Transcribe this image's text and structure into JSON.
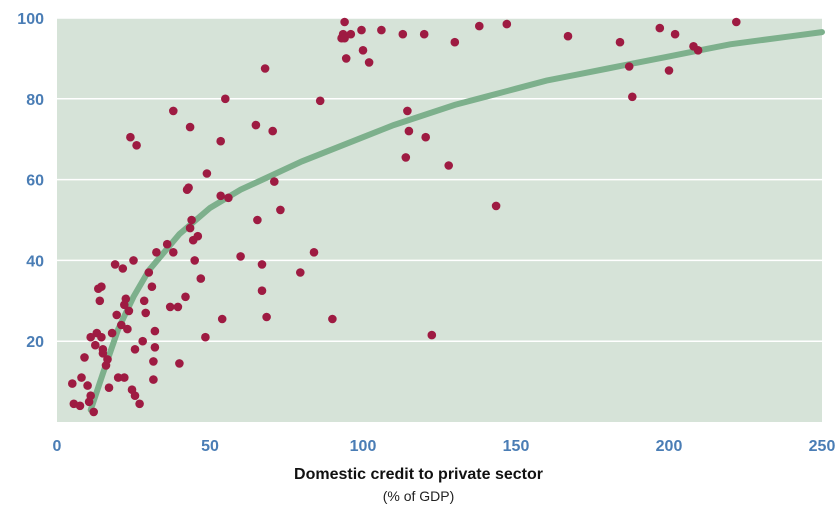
{
  "chart_data": {
    "type": "scatter",
    "xlabel": "Domestic credit to private sector",
    "xlabel_sub": "(% of GDP)",
    "ylabel": "",
    "xlim": [
      0,
      250
    ],
    "ylim": [
      0,
      100
    ],
    "x_ticks": [
      0,
      50,
      100,
      150,
      200,
      250
    ],
    "y_ticks": [
      20,
      40,
      60,
      80,
      100
    ],
    "grid": "horizontal",
    "colors": {
      "background": "#d6e3d8",
      "points": "#9e1b42",
      "trend": "#7db08c",
      "grid": "#ffffff",
      "tick_labels": "#4a7db5"
    },
    "series": [
      {
        "values": [
          [
            5,
            9.5
          ],
          [
            5.5,
            4.5
          ],
          [
            7.5,
            4
          ],
          [
            8,
            11
          ],
          [
            9,
            16
          ],
          [
            10,
            9
          ],
          [
            10.5,
            5
          ],
          [
            11,
            6.5
          ],
          [
            11,
            21
          ],
          [
            12,
            2.5
          ],
          [
            12.5,
            19
          ],
          [
            13,
            22
          ],
          [
            13.5,
            33
          ],
          [
            14,
            30
          ],
          [
            14.5,
            33.5
          ],
          [
            14.5,
            21
          ],
          [
            15,
            17
          ],
          [
            15,
            18
          ],
          [
            16,
            14
          ],
          [
            16.5,
            15.5
          ],
          [
            17,
            8.5
          ],
          [
            18,
            22
          ],
          [
            19,
            39
          ],
          [
            19.5,
            26.5
          ],
          [
            20,
            11
          ],
          [
            21,
            24
          ],
          [
            21.5,
            38
          ],
          [
            22,
            11
          ],
          [
            22,
            29
          ],
          [
            22.5,
            30.5
          ],
          [
            23,
            23
          ],
          [
            23.5,
            27.5
          ],
          [
            24,
            70.5
          ],
          [
            24.5,
            8
          ],
          [
            25,
            40
          ],
          [
            25.5,
            6.5
          ],
          [
            25.5,
            18
          ],
          [
            26,
            68.5
          ],
          [
            27,
            4.5
          ],
          [
            28,
            20
          ],
          [
            28.5,
            30
          ],
          [
            29,
            27
          ],
          [
            30,
            37
          ],
          [
            31,
            33.5
          ],
          [
            31.5,
            10.5
          ],
          [
            31.5,
            15
          ],
          [
            32,
            18.5
          ],
          [
            32,
            22.5
          ],
          [
            32.5,
            42
          ],
          [
            36,
            44
          ],
          [
            37,
            28.5
          ],
          [
            38,
            77
          ],
          [
            38,
            42
          ],
          [
            39.5,
            28.5
          ],
          [
            40,
            14.5
          ],
          [
            42,
            31
          ],
          [
            42.5,
            57.5
          ],
          [
            43,
            58
          ],
          [
            43.5,
            73
          ],
          [
            43.5,
            48
          ],
          [
            44,
            50
          ],
          [
            44.5,
            45
          ],
          [
            45,
            40
          ],
          [
            46,
            46
          ],
          [
            47,
            35.5
          ],
          [
            48.5,
            21
          ],
          [
            49,
            61.5
          ],
          [
            53.5,
            69.5
          ],
          [
            53.5,
            56
          ],
          [
            54,
            25.5
          ],
          [
            55,
            80
          ],
          [
            56,
            55.5
          ],
          [
            60,
            41
          ],
          [
            65,
            73.5
          ],
          [
            65.5,
            50
          ],
          [
            67,
            32.5
          ],
          [
            67,
            39
          ],
          [
            68,
            87.5
          ],
          [
            68.5,
            26
          ],
          [
            70.5,
            72
          ],
          [
            71,
            59.5
          ],
          [
            73,
            52.5
          ],
          [
            79.5,
            37
          ],
          [
            84,
            42
          ],
          [
            86,
            79.5
          ],
          [
            90,
            25.5
          ],
          [
            93,
            95
          ],
          [
            93.5,
            96
          ],
          [
            94,
            99
          ],
          [
            94,
            95
          ],
          [
            94.5,
            90
          ],
          [
            96,
            96
          ],
          [
            99.5,
            97
          ],
          [
            100,
            92
          ],
          [
            102,
            89
          ],
          [
            106,
            97
          ],
          [
            113,
            96
          ],
          [
            114,
            65.5
          ],
          [
            114.5,
            77
          ],
          [
            115,
            72
          ],
          [
            120,
            96
          ],
          [
            120.5,
            70.5
          ],
          [
            122.5,
            21.5
          ],
          [
            128,
            63.5
          ],
          [
            130,
            94
          ],
          [
            138,
            98
          ],
          [
            143.5,
            53.5
          ],
          [
            147,
            98.5
          ],
          [
            167,
            95.5
          ],
          [
            184,
            94
          ],
          [
            187,
            88
          ],
          [
            188,
            80.5
          ],
          [
            197,
            97.5
          ],
          [
            200,
            87
          ],
          [
            202,
            96
          ],
          [
            208,
            93
          ],
          [
            209.5,
            92
          ],
          [
            222,
            99
          ]
        ]
      }
    ],
    "trend": {
      "type": "line",
      "values": [
        [
          11,
          3
        ],
        [
          15,
          12
        ],
        [
          20,
          23
        ],
        [
          25,
          31
        ],
        [
          30,
          37.5
        ],
        [
          40,
          46.5
        ],
        [
          50,
          53
        ],
        [
          60,
          57.5
        ],
        [
          70,
          61
        ],
        [
          80,
          64.5
        ],
        [
          90,
          67.5
        ],
        [
          100,
          70.5
        ],
        [
          110,
          73.5
        ],
        [
          120,
          76
        ],
        [
          130,
          78.5
        ],
        [
          140,
          80.5
        ],
        [
          150,
          82.5
        ],
        [
          160,
          84.5
        ],
        [
          170,
          86
        ],
        [
          180,
          87.5
        ],
        [
          190,
          89
        ],
        [
          200,
          90.5
        ],
        [
          210,
          92
        ],
        [
          220,
          93.5
        ],
        [
          230,
          94.5
        ],
        [
          240,
          95.5
        ],
        [
          250,
          96.5
        ]
      ]
    }
  }
}
